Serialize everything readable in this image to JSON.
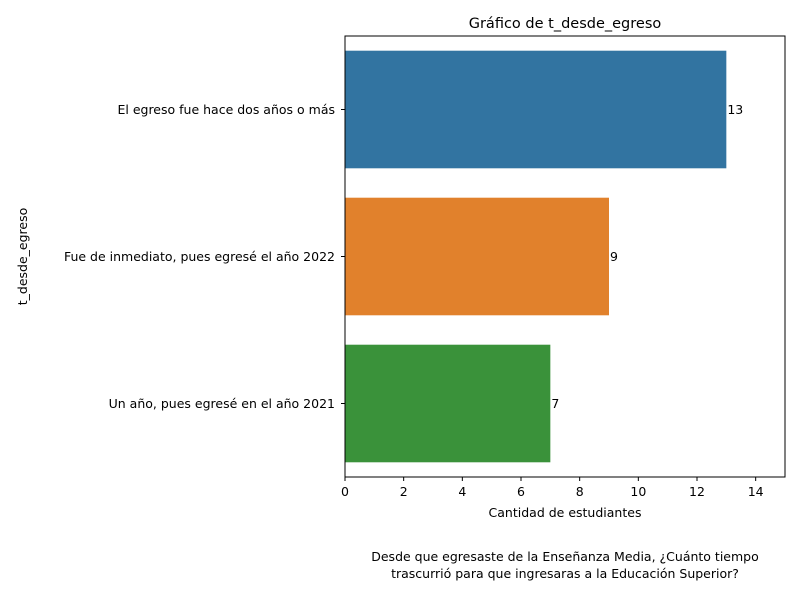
{
  "chart_data": {
    "type": "bar",
    "orientation": "horizontal",
    "title": "Gráfico de t_desde_egreso",
    "xlabel": "Cantidad de estudiantes",
    "ylabel": "t_desde_egreso",
    "caption_lines": [
      "Desde que egresaste de la Enseñanza Media, ¿Cuánto tiempo",
      "trascurrió para que ingresaras a la Educación Superior?"
    ],
    "categories": [
      "El egreso fue hace dos años o más",
      "Fue de inmediato, pues egresé el año 2022",
      "Un año, pues egresé en el año 2021"
    ],
    "values": [
      13,
      9,
      7
    ],
    "data_labels": [
      "13",
      "9",
      "7"
    ],
    "colors": [
      "#3274a1",
      "#e1812c",
      "#3a923a"
    ],
    "xlim": [
      0,
      15
    ],
    "xticks": [
      0,
      2,
      4,
      6,
      8,
      10,
      12,
      14
    ],
    "grid": false,
    "legend": "none"
  }
}
